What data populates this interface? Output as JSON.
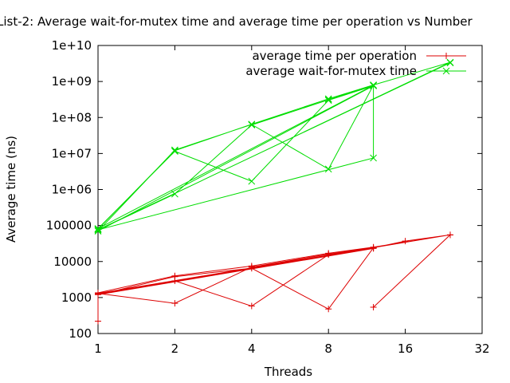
{
  "chart_data": {
    "type": "line",
    "title": "List-2: Average wait-for-mutex time and average time per operation vs Number",
    "xlabel": "Threads",
    "ylabel": "Average time (ns)",
    "xscale": "log2",
    "yscale": "log10",
    "xlim": [
      1,
      32
    ],
    "ylim": [
      100,
      10000000000
    ],
    "xticks": [
      {
        "v": 1,
        "label": "1"
      },
      {
        "v": 2,
        "label": "2"
      },
      {
        "v": 4,
        "label": "4"
      },
      {
        "v": 8,
        "label": "8"
      },
      {
        "v": 16,
        "label": "16"
      },
      {
        "v": 32,
        "label": "32"
      }
    ],
    "yticks": [
      {
        "v": 100,
        "label": "100"
      },
      {
        "v": 1000,
        "label": "1000"
      },
      {
        "v": 10000,
        "label": "10000"
      },
      {
        "v": 100000,
        "label": "100000"
      },
      {
        "v": 1000000,
        "label": "1e+06"
      },
      {
        "v": 10000000,
        "label": "1e+07"
      },
      {
        "v": 100000000,
        "label": "1e+08"
      },
      {
        "v": 1000000000,
        "label": "1e+09"
      },
      {
        "v": 10000000000,
        "label": "1e+10"
      }
    ],
    "grid": false,
    "legend": "top-right",
    "series": [
      {
        "name": "average time per operation",
        "color": "#dd0000",
        "marker": "plus",
        "points": [
          [
            1,
            220
          ],
          [
            1,
            1350
          ],
          [
            2,
            4000
          ],
          [
            4,
            7500
          ],
          [
            8,
            17000
          ],
          [
            12,
            25000
          ],
          [
            24,
            55000
          ],
          [
            1,
            1300
          ],
          [
            2,
            690
          ],
          [
            4,
            7000
          ],
          [
            8,
            16000
          ],
          [
            12,
            24000
          ],
          [
            1,
            1250
          ],
          [
            2,
            2900
          ],
          [
            4,
            580
          ],
          [
            8,
            15500
          ],
          [
            12,
            23000
          ],
          [
            1,
            1200
          ],
          [
            2,
            3800
          ],
          [
            4,
            6500
          ],
          [
            8,
            480
          ],
          [
            12,
            24000
          ],
          [
            16,
            37000
          ],
          [
            24,
            55000
          ],
          [
            12,
            540
          ]
        ]
      },
      {
        "name": "average wait-for-mutex time",
        "color": "#00dd00",
        "marker": "cross",
        "points": [
          [
            1,
            80000
          ],
          [
            2,
            12000000
          ],
          [
            4,
            65000000
          ],
          [
            8,
            330000000
          ],
          [
            12,
            800000000
          ],
          [
            24,
            3400000000
          ],
          [
            1,
            75000
          ],
          [
            2,
            750000
          ],
          [
            4,
            62000000
          ],
          [
            8,
            310000000
          ],
          [
            12,
            780000000
          ],
          [
            1,
            82000
          ],
          [
            2,
            11500000
          ],
          [
            4,
            1700000
          ],
          [
            8,
            300000000
          ],
          [
            12,
            760000000
          ],
          [
            1,
            70000
          ],
          [
            2,
            12500000
          ],
          [
            4,
            64000000
          ],
          [
            8,
            3700000
          ],
          [
            12,
            790000000
          ],
          [
            12,
            7500000
          ],
          [
            1,
            76000
          ],
          [
            24,
            3300000000
          ]
        ]
      }
    ]
  }
}
